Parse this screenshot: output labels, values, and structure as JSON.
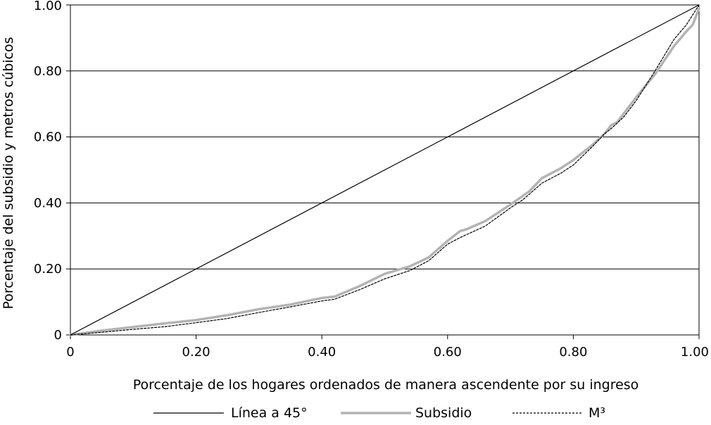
{
  "chart_data": {
    "type": "line",
    "xlabel": "Porcentaje de los hogares ordenados de manera ascendente por su ingreso",
    "ylabel": "Porcentaje del subsidio y metros cúbicos",
    "xlim": [
      0,
      1
    ],
    "ylim": [
      0,
      1
    ],
    "x_ticks": [
      "0",
      "0.20",
      "0.40",
      "0.60",
      "0.80",
      "1.00"
    ],
    "x_tick_values": [
      0,
      0.2,
      0.4,
      0.6,
      0.8,
      1.0
    ],
    "y_ticks": [
      "0",
      "0.20",
      "0.40",
      "0.60",
      "0.80",
      "1.00"
    ],
    "y_tick_values": [
      0,
      0.2,
      0.4,
      0.6,
      0.8,
      1.0
    ],
    "grid": "horizontal",
    "legend_position": "bottom",
    "series": [
      {
        "name": "Línea a 45°",
        "color": "#000000",
        "style": "solid-thin",
        "x": [
          0,
          1
        ],
        "y": [
          0,
          1
        ]
      },
      {
        "name": "Subsidio",
        "color": "#b3b3b3",
        "style": "solid-thick",
        "x": [
          0,
          0.05,
          0.1,
          0.15,
          0.2,
          0.25,
          0.3,
          0.35,
          0.4,
          0.42,
          0.46,
          0.5,
          0.54,
          0.57,
          0.6,
          0.62,
          0.63,
          0.66,
          0.7,
          0.73,
          0.75,
          0.78,
          0.8,
          0.83,
          0.85,
          0.86,
          0.87,
          0.9,
          0.93,
          0.96,
          0.98,
          0.99,
          1.0
        ],
        "y": [
          0,
          0.013,
          0.024,
          0.035,
          0.045,
          0.06,
          0.078,
          0.092,
          0.112,
          0.116,
          0.148,
          0.185,
          0.208,
          0.235,
          0.285,
          0.315,
          0.32,
          0.345,
          0.395,
          0.435,
          0.475,
          0.505,
          0.53,
          0.575,
          0.61,
          0.635,
          0.645,
          0.72,
          0.79,
          0.875,
          0.92,
          0.94,
          0.99
        ]
      },
      {
        "name": "M³",
        "color": "#000000",
        "style": "dashed",
        "x": [
          0,
          0.05,
          0.1,
          0.15,
          0.2,
          0.25,
          0.3,
          0.35,
          0.4,
          0.42,
          0.46,
          0.5,
          0.54,
          0.57,
          0.6,
          0.62,
          0.66,
          0.7,
          0.72,
          0.75,
          0.78,
          0.8,
          0.83,
          0.85,
          0.86,
          0.88,
          0.9,
          0.93,
          0.96,
          0.98,
          1.0
        ],
        "y": [
          0,
          0.008,
          0.017,
          0.025,
          0.037,
          0.05,
          0.068,
          0.085,
          0.103,
          0.108,
          0.137,
          0.17,
          0.195,
          0.225,
          0.275,
          0.295,
          0.33,
          0.385,
          0.41,
          0.46,
          0.49,
          0.515,
          0.57,
          0.61,
          0.625,
          0.66,
          0.71,
          0.8,
          0.895,
          0.94,
          1.0
        ]
      }
    ]
  }
}
